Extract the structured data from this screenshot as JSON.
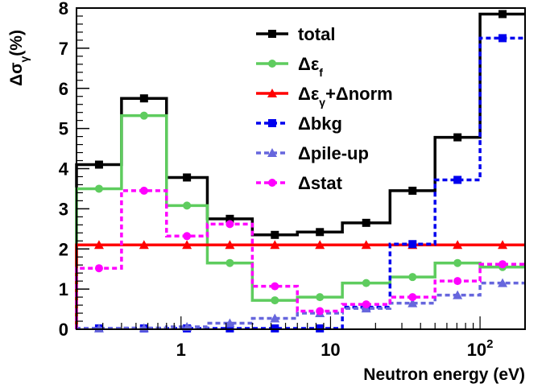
{
  "chart_data": {
    "type": "line",
    "step": true,
    "xlabel": "Neutron energy (eV)",
    "ylabel": "Δσ",
    "ylabel_sub": "γ",
    "ylabel_unit": "(%)",
    "xscale": "log",
    "xlim": [
      0.2,
      200
    ],
    "ylim": [
      0,
      8
    ],
    "y_ticks": [
      "0",
      "1",
      "2",
      "3",
      "4",
      "5",
      "6",
      "7",
      "8"
    ],
    "x_ticks": [
      {
        "value": 1,
        "label": "1"
      },
      {
        "value": 10,
        "label": "10"
      },
      {
        "value": 100,
        "label": "10",
        "sup": "2"
      }
    ],
    "bin_edges": [
      0.2,
      0.4,
      0.8,
      1.5,
      3,
      6,
      12,
      25,
      50,
      100,
      200
    ],
    "legend_position": "top-center",
    "series": [
      {
        "name": "total",
        "color": "#000000",
        "dash": "",
        "marker": "square",
        "values": [
          4.1,
          5.75,
          3.78,
          2.75,
          2.35,
          2.42,
          2.65,
          3.45,
          4.78,
          7.85
        ]
      },
      {
        "name": "Δε",
        "name_sub": "f",
        "color": "#5ecc5e",
        "dash": "",
        "marker": "circle",
        "values": [
          3.5,
          5.32,
          3.08,
          1.65,
          0.72,
          0.8,
          1.15,
          1.3,
          1.65,
          1.55
        ]
      },
      {
        "name": "Δε",
        "name_sub": "γ",
        "name_suffix": "+Δnorm",
        "color": "#ff0000",
        "dash": "",
        "marker": "triangle",
        "values": [
          2.1,
          2.1,
          2.1,
          2.1,
          2.1,
          2.1,
          2.1,
          2.1,
          2.1,
          2.1
        ]
      },
      {
        "name": "Δbkg",
        "color": "#0000ee",
        "dash": "6,4",
        "marker": "square",
        "values": [
          0.02,
          0.02,
          0.02,
          0.02,
          0.02,
          0.02,
          0.55,
          2.12,
          3.72,
          7.25
        ]
      },
      {
        "name": "Δpile-up",
        "color": "#6666dd",
        "dash": "6,4",
        "marker": "triangle",
        "values": [
          0.02,
          0.03,
          0.06,
          0.15,
          0.27,
          0.4,
          0.52,
          0.65,
          0.85,
          1.15
        ]
      },
      {
        "name": "Δstat",
        "color": "#ff00ff",
        "dash": "6,4",
        "marker": "circle",
        "values": [
          1.52,
          3.45,
          2.32,
          2.62,
          1.07,
          0.45,
          0.62,
          0.8,
          1.2,
          1.62
        ]
      }
    ]
  }
}
